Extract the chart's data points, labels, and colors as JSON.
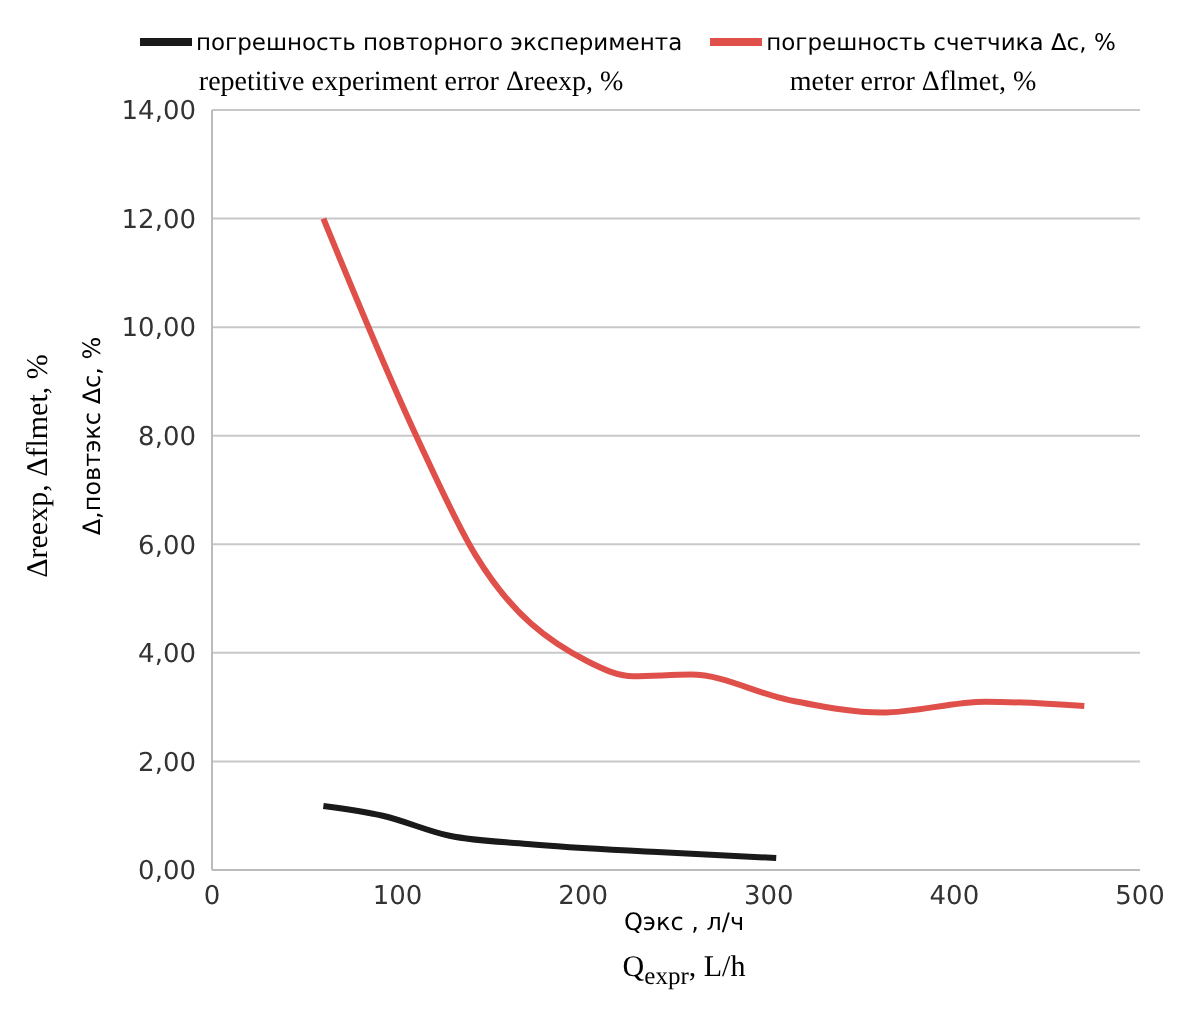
{
  "chart_data": {
    "type": "line",
    "xlabel": "Qэкс , л/ч",
    "ylabel": "Δ,повтэкс Δс,  %",
    "annotations": [
      "repetitive experiment error Δreexp, %",
      "meter error Δflmet, %",
      "Δreexp, Δflmet, %",
      "Q$_{expr}$, L/h"
    ],
    "series": [
      {
        "name": "погрешность повторного эксперимента",
        "color": "#1a1a1a",
        "x": [
          60,
          92,
          128,
          170,
          240,
          304
        ],
        "values": [
          1.18,
          1.0,
          0.63,
          0.48,
          0.33,
          0.22
        ]
      },
      {
        "name": "погрешность счетчика Δc, %",
        "color": "#e0504a",
        "x": [
          60,
          110,
          142,
          202,
          227,
          258,
          311,
          361,
          417,
          470
        ],
        "values": [
          12.0,
          8.0,
          5.8,
          3.85,
          3.57,
          3.6,
          3.13,
          2.9,
          3.1,
          3.02
        ]
      }
    ],
    "xlim": [
      0,
      500
    ],
    "xticks": [
      0,
      100,
      200,
      300,
      400,
      500
    ],
    "ylim": [
      0,
      14
    ],
    "yticks": [
      {
        "value": 0,
        "label": "0,00"
      },
      {
        "value": 2,
        "label": "2,00"
      },
      {
        "value": 4,
        "label": "4,00"
      },
      {
        "value": 6,
        "label": "6,00"
      },
      {
        "value": 8,
        "label": "8,00"
      },
      {
        "value": 10,
        "label": "10,00"
      },
      {
        "value": 12,
        "label": "12,00"
      },
      {
        "value": 14,
        "label": "14,00"
      }
    ],
    "grid": "y",
    "legend": "top",
    "marker": "none",
    "line_style": "solid"
  }
}
